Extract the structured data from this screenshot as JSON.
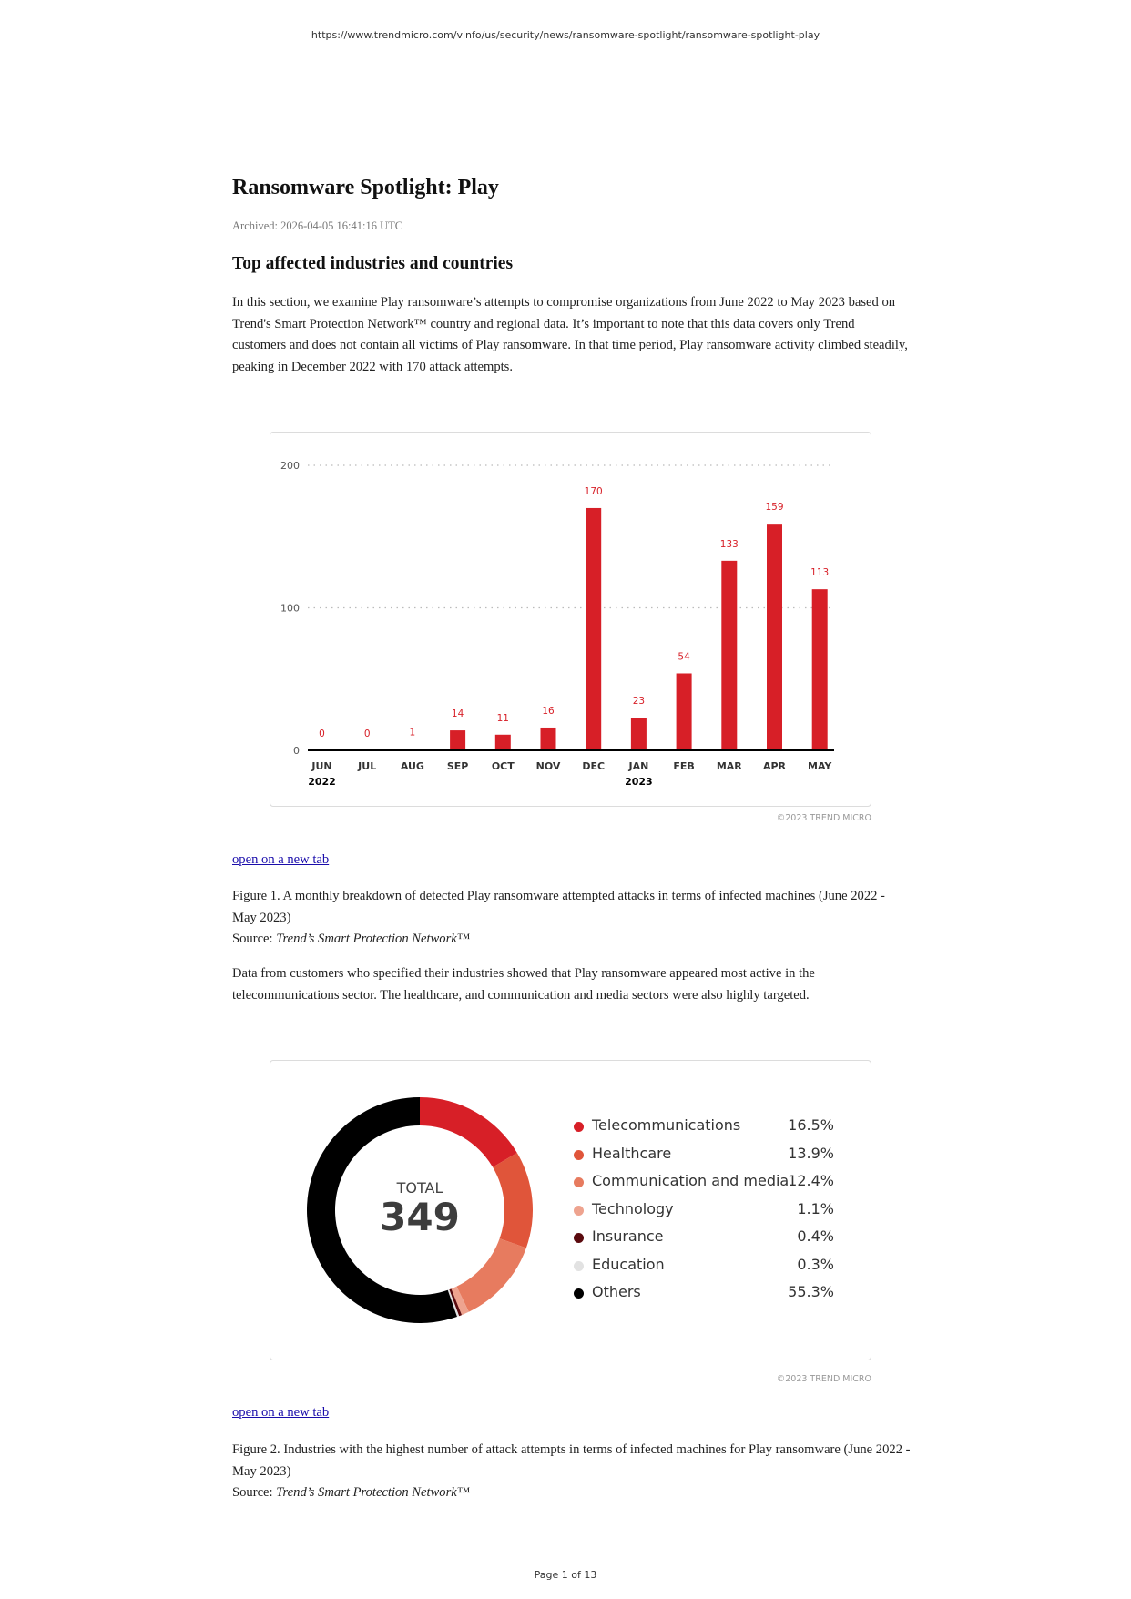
{
  "header": {
    "url": "https://www.trendmicro.com/vinfo/us/security/news/ransomware-spotlight/ransomware-spotlight-play"
  },
  "article": {
    "title": "Ransomware Spotlight: Play",
    "archived": "Archived: 2026-04-05 16:41:16 UTC",
    "section_heading": "Top affected industries and countries",
    "intro": "In this section, we examine Play ransomware’s attempts to compromise organizations from June 2022 to May 2023 based on Trend's Smart Protection Network™ country and regional data. It’s important to note that this data covers only Trend customers and does not contain all victims of Play ransomware. In that time period, Play ransomware activity climbed steadily, peaking in December 2022 with 170 attack attempts.",
    "figure1_link": "open on a new tab",
    "figure1_caption": "Figure 1. A monthly breakdown of detected Play ransomware attempted attacks in terms of infected machines (June 2022 - May 2023)",
    "source_label": "Source: ",
    "source_name": "Trend’s Smart Protection Network™",
    "industries_para": "Data from customers who specified their industries showed that Play ransomware appeared most active in the telecommunications sector. The healthcare, and communication and media sectors were also highly targeted.",
    "figure2_link": "open on a new tab",
    "figure2_caption": "Figure 2. Industries with the highest number of attack attempts in terms of infected machines for Play ransomware (June 2022 - May 2023)",
    "copyright": "©2023 TREND MICRO"
  },
  "footer": {
    "page": "Page 1 of 13"
  },
  "chart_data": [
    {
      "type": "bar",
      "categories": [
        "JUN",
        "JUL",
        "AUG",
        "SEP",
        "OCT",
        "NOV",
        "DEC",
        "JAN",
        "FEB",
        "MAR",
        "APR",
        "MAY"
      ],
      "year_labels": [
        {
          "index": 0,
          "label": "2022"
        },
        {
          "index": 7,
          "label": "2023"
        }
      ],
      "values": [
        0,
        0,
        1,
        14,
        11,
        16,
        170,
        23,
        54,
        133,
        159,
        113
      ],
      "ylim": [
        0,
        200
      ],
      "yticks": [
        0,
        100,
        200
      ],
      "grid": true,
      "data_labels": true,
      "color": "#d71f27"
    },
    {
      "type": "pie",
      "donut": true,
      "center_label": "TOTAL",
      "center_value": "349",
      "legend_placement": "right",
      "slices": [
        {
          "label": "Telecommunications",
          "value": 16.5,
          "display": "16.5%",
          "color": "#d71f27"
        },
        {
          "label": "Healthcare",
          "value": 13.9,
          "display": "13.9%",
          "color": "#e0553a"
        },
        {
          "label": "Communication and media",
          "value": 12.4,
          "display": "12.4%",
          "color": "#e77b5f"
        },
        {
          "label": "Technology",
          "value": 1.1,
          "display": "1.1%",
          "color": "#eea38f"
        },
        {
          "label": "Insurance",
          "value": 0.4,
          "display": "0.4%",
          "color": "#5a0a0e"
        },
        {
          "label": "Education",
          "value": 0.3,
          "display": "0.3%",
          "color": "#e2e2e2"
        },
        {
          "label": "Others",
          "value": 55.3,
          "display": "55.3%",
          "color": "#000000"
        }
      ]
    }
  ]
}
